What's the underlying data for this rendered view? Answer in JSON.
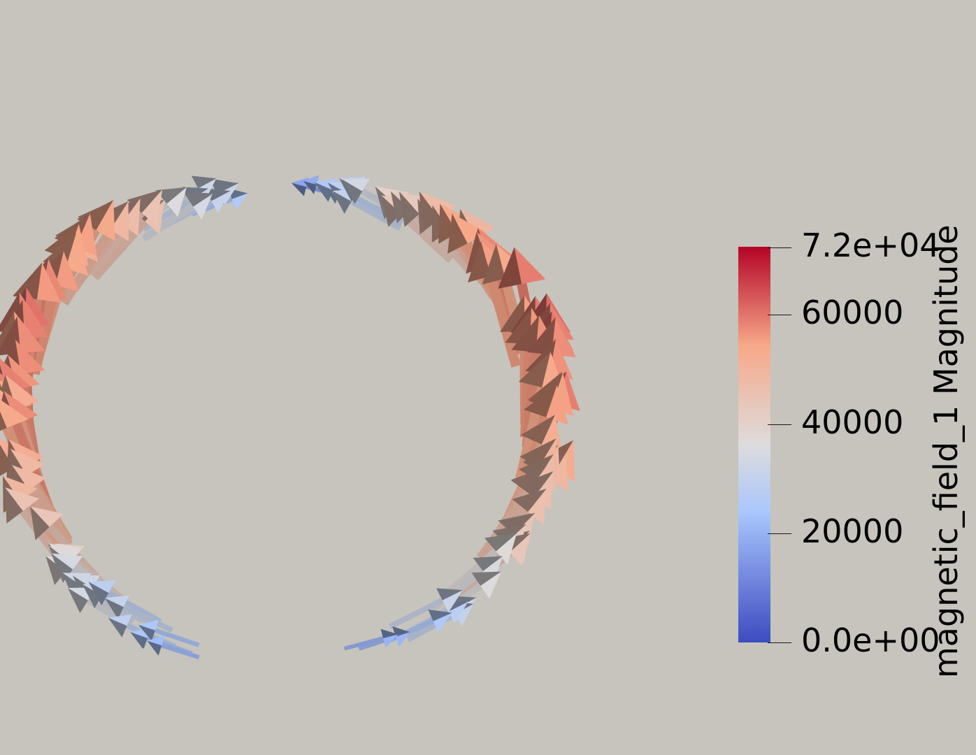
{
  "background_color": "#c6c4bc",
  "colorbar": {
    "title": "magnetic_field_1 Magnitude",
    "range": [
      0,
      72000
    ],
    "colors": {
      "min": "#3b4cc0",
      "low": "#aac7fd",
      "mid": "#dddcdc",
      "high": "#f7a889",
      "max": "#b40426"
    },
    "ticks": [
      {
        "label": "7.2e+04",
        "value": 72000
      },
      {
        "label": "60000",
        "value": 60000
      },
      {
        "label": "40000",
        "value": 40000
      },
      {
        "label": "20000",
        "value": 20000
      },
      {
        "label": "0.0e+00",
        "value": 0
      }
    ]
  }
}
